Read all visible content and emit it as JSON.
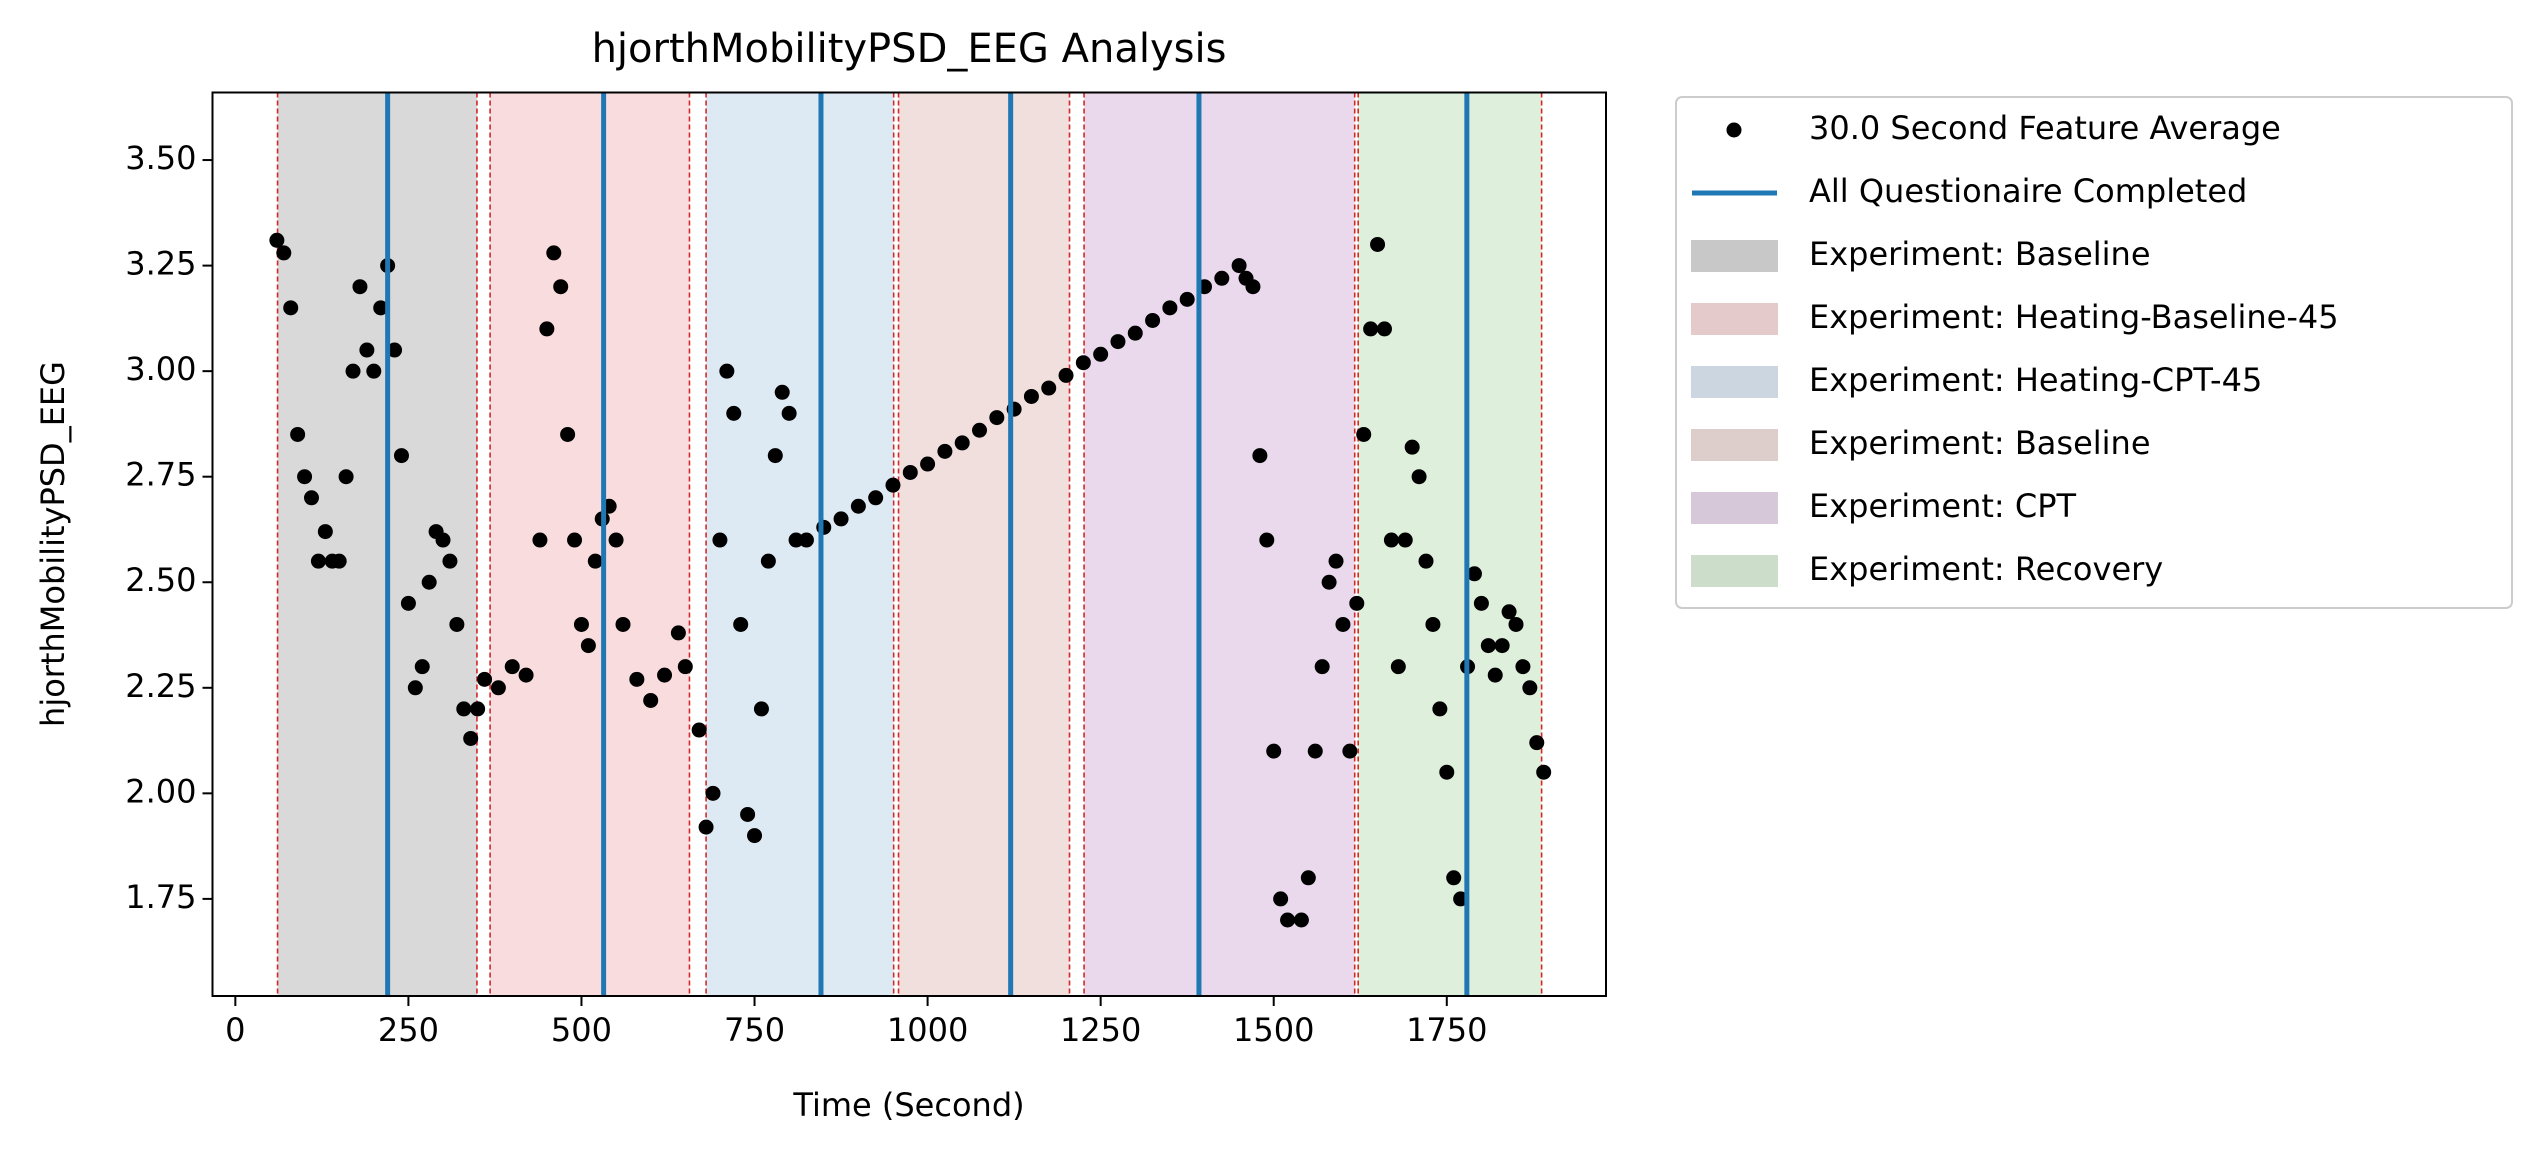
{
  "chart_data": {
    "type": "scatter",
    "title": "hjorthMobilityPSD_EEG Analysis",
    "xlabel": "Time (Second)",
    "ylabel": "hjorthMobilityPSD_EEG",
    "xlim": [
      -33,
      1980
    ],
    "ylim": [
      1.52,
      3.66
    ],
    "xticks": [
      0,
      250,
      500,
      750,
      1000,
      1250,
      1500,
      1750
    ],
    "yticks": [
      {
        "value": 1.75,
        "label": "1.75"
      },
      {
        "value": 2.0,
        "label": "2.00"
      },
      {
        "value": 2.25,
        "label": "2.25"
      },
      {
        "value": 2.5,
        "label": "2.50"
      },
      {
        "value": 2.75,
        "label": "2.75"
      },
      {
        "value": 3.0,
        "label": "3.00"
      },
      {
        "value": 3.25,
        "label": "3.25"
      },
      {
        "value": 3.5,
        "label": "3.50"
      }
    ],
    "spans": [
      {
        "name": "Experiment: Baseline",
        "color": "#d9d9d9",
        "start": 61,
        "end": 349
      },
      {
        "name": "Experiment: Heating-Baseline-45",
        "color": "#f9dcdd",
        "start": 368,
        "end": 656
      },
      {
        "name": "Experiment: Heating-CPT-45",
        "color": "#dde9f3",
        "start": 680,
        "end": 951
      },
      {
        "name": "Experiment: Baseline",
        "color": "#f0dfdd",
        "start": 958,
        "end": 1205
      },
      {
        "name": "Experiment: CPT",
        "color": "#ead9ec",
        "start": 1226,
        "end": 1617
      },
      {
        "name": "Experiment: Recovery",
        "color": "#def0dc",
        "start": 1622,
        "end": 1887
      }
    ],
    "vlines": {
      "name": "All Questionaire Completed",
      "color": "#1f77b4",
      "x": [
        220,
        532,
        846,
        1120,
        1392,
        1779
      ]
    },
    "x": [
      60,
      70,
      80,
      90,
      100,
      110,
      120,
      130,
      140,
      150,
      160,
      170,
      180,
      190,
      200,
      210,
      220,
      230,
      240,
      250,
      260,
      270,
      280,
      290,
      300,
      310,
      320,
      330,
      340,
      350,
      360,
      380,
      400,
      420,
      440,
      450,
      460,
      470,
      480,
      490,
      500,
      510,
      520,
      530,
      540,
      550,
      560,
      580,
      600,
      620,
      640,
      650,
      670,
      680,
      690,
      700,
      710,
      720,
      730,
      740,
      750,
      760,
      770,
      780,
      790,
      800,
      810,
      825,
      850,
      875,
      900,
      925,
      950,
      975,
      1000,
      1025,
      1050,
      1075,
      1100,
      1125,
      1150,
      1175,
      1200,
      1225,
      1250,
      1275,
      1300,
      1325,
      1350,
      1375,
      1400,
      1425,
      1450,
      1460,
      1470,
      1480,
      1490,
      1500,
      1510,
      1520,
      1540,
      1550,
      1560,
      1570,
      1580,
      1590,
      1600,
      1610,
      1620,
      1630,
      1640,
      1650,
      1660,
      1670,
      1680,
      1690,
      1700,
      1710,
      1720,
      1730,
      1740,
      1750,
      1760,
      1770,
      1780,
      1790,
      1800,
      1810,
      1820,
      1830,
      1840,
      1850,
      1860,
      1870,
      1880,
      1890
    ],
    "series": [
      {
        "name": "30.0 Second Feature Average",
        "color": "#000000",
        "values": [
          3.31,
          3.28,
          3.15,
          2.85,
          2.75,
          2.7,
          2.55,
          2.62,
          2.55,
          2.55,
          2.75,
          3.0,
          3.2,
          3.05,
          3.0,
          3.15,
          3.25,
          3.05,
          2.8,
          2.45,
          2.25,
          2.3,
          2.5,
          2.62,
          2.6,
          2.55,
          2.4,
          2.2,
          2.13,
          2.2,
          2.27,
          2.25,
          2.3,
          2.28,
          2.6,
          3.1,
          3.28,
          3.2,
          2.85,
          2.6,
          2.4,
          2.35,
          2.55,
          2.65,
          2.68,
          2.6,
          2.4,
          2.27,
          2.22,
          2.28,
          2.38,
          2.3,
          2.15,
          1.92,
          2.0,
          2.6,
          3.0,
          2.9,
          2.4,
          1.95,
          1.9,
          2.2,
          2.55,
          2.8,
          2.95,
          2.9,
          2.6,
          2.6,
          2.63,
          2.65,
          2.68,
          2.7,
          2.73,
          2.76,
          2.78,
          2.81,
          2.83,
          2.86,
          2.89,
          2.91,
          2.94,
          2.96,
          2.99,
          3.02,
          3.04,
          3.07,
          3.09,
          3.12,
          3.15,
          3.17,
          3.2,
          3.22,
          3.25,
          3.22,
          3.2,
          2.8,
          2.6,
          2.1,
          1.75,
          1.7,
          1.7,
          1.8,
          2.1,
          2.3,
          2.5,
          2.55,
          2.4,
          2.1,
          2.45,
          2.85,
          3.1,
          3.3,
          3.1,
          2.6,
          2.3,
          2.6,
          2.82,
          2.75,
          2.55,
          2.4,
          2.2,
          2.05,
          1.8,
          1.75,
          2.3,
          2.52,
          2.45,
          2.35,
          2.28,
          2.35,
          2.43,
          2.4,
          2.3,
          2.25,
          2.12,
          2.05
        ]
      }
    ]
  }
}
